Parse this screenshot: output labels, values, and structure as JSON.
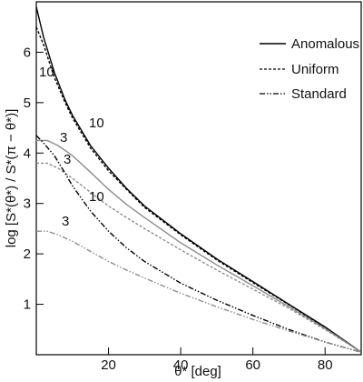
{
  "chart_data": {
    "type": "line",
    "title": "",
    "xlabel": "θ* [deg]",
    "ylabel": "log [S*(θ*) / S*(π − θ*)]",
    "xlim": [
      0,
      90
    ],
    "ylim": [
      0,
      7
    ],
    "xticks": [
      20,
      40,
      60,
      80
    ],
    "yticks": [
      1,
      2,
      3,
      4,
      5,
      6
    ],
    "grid": false,
    "legend_position": "top-right",
    "legend": [
      {
        "label": "Anomalous",
        "style": "solid"
      },
      {
        "label": "Uniform",
        "style": "dashed"
      },
      {
        "label": "Standard",
        "style": "dashdotdot"
      }
    ],
    "series": [
      {
        "legend_style": "solid",
        "annotation": "10",
        "color": "#000000",
        "x": [
          0,
          2,
          5,
          8,
          10,
          15,
          20,
          25,
          30,
          40,
          50,
          60,
          70,
          80,
          90
        ],
        "y": [
          6.9,
          6.3,
          5.6,
          5.05,
          4.75,
          4.15,
          3.7,
          3.3,
          2.95,
          2.4,
          1.9,
          1.45,
          1.0,
          0.55,
          0.05
        ]
      },
      {
        "legend_style": "dashed",
        "annotation": "10",
        "color": "#000000",
        "x": [
          0,
          2,
          5,
          8,
          10,
          15,
          20,
          25,
          30,
          40,
          50,
          60,
          70,
          80,
          90
        ],
        "y": [
          6.5,
          6.15,
          5.5,
          5.0,
          4.7,
          4.1,
          3.65,
          3.28,
          2.92,
          2.38,
          1.88,
          1.43,
          0.99,
          0.54,
          0.05
        ]
      },
      {
        "legend_style": "solid",
        "annotation": "3",
        "color": "#8c8c8c",
        "x": [
          0,
          3,
          6,
          10,
          15,
          20,
          25,
          30,
          40,
          50,
          60,
          70,
          80,
          90
        ],
        "y": [
          4.25,
          4.25,
          4.15,
          3.95,
          3.62,
          3.28,
          2.98,
          2.72,
          2.22,
          1.78,
          1.37,
          0.95,
          0.52,
          0.05
        ]
      },
      {
        "legend_style": "dashed",
        "annotation": "3",
        "color": "#8c8c8c",
        "x": [
          0,
          3,
          6,
          10,
          15,
          20,
          25,
          30,
          40,
          50,
          60,
          70,
          80,
          90
        ],
        "y": [
          3.8,
          3.8,
          3.7,
          3.5,
          3.22,
          2.95,
          2.72,
          2.5,
          2.08,
          1.68,
          1.3,
          0.92,
          0.5,
          0.05
        ]
      },
      {
        "legend_style": "dashdotdot",
        "annotation": "10",
        "color": "#000000",
        "x": [
          0,
          2,
          5,
          8,
          10,
          15,
          20,
          25,
          30,
          40,
          50,
          60,
          70,
          80,
          90
        ],
        "y": [
          4.35,
          4.2,
          3.95,
          3.6,
          3.35,
          2.85,
          2.45,
          2.12,
          1.85,
          1.42,
          1.08,
          0.78,
          0.5,
          0.25,
          0.05
        ]
      },
      {
        "legend_style": "dashdotdot",
        "annotation": "3",
        "color": "#8c8c8c",
        "x": [
          0,
          3,
          6,
          10,
          15,
          20,
          25,
          30,
          40,
          50,
          60,
          70,
          80,
          90
        ],
        "y": [
          2.45,
          2.45,
          2.38,
          2.25,
          2.05,
          1.85,
          1.68,
          1.52,
          1.22,
          0.95,
          0.7,
          0.47,
          0.25,
          0.05
        ]
      }
    ]
  }
}
